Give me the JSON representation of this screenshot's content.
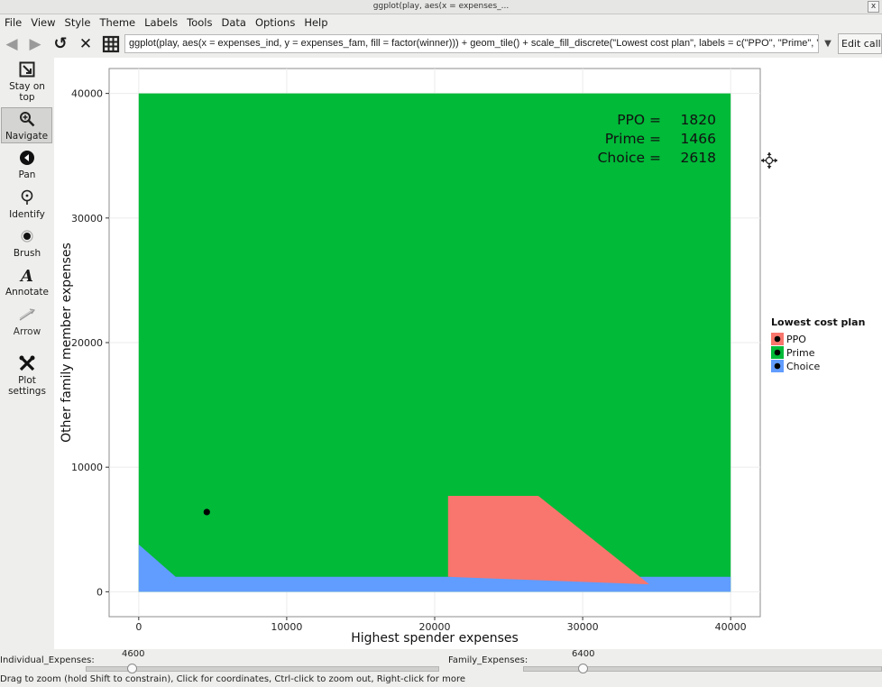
{
  "window": {
    "title": "ggplot(play, aes(x = expenses_...",
    "close": "x"
  },
  "menu": [
    "File",
    "View",
    "Style",
    "Theme",
    "Labels",
    "Tools",
    "Data",
    "Options",
    "Help"
  ],
  "toolbar": {
    "command": "ggplot(play, aes(x = expenses_ind, y = expenses_fam, fill = factor(winner))) + geom_tile() + scale_fill_discrete(\"Lowest cost plan\", labels = c(\"PPO\", \"Prime\", \"Choice\")) + geom_",
    "edit_call": "Edit call..."
  },
  "tools": [
    {
      "label": "Stay on top",
      "icon": "stay-on-top-icon"
    },
    {
      "label": "Navigate",
      "icon": "magnifier-icon",
      "active": true
    },
    {
      "label": "Pan",
      "icon": "pan-icon"
    },
    {
      "label": "Identify",
      "icon": "identify-icon"
    },
    {
      "label": "Brush",
      "icon": "brush-icon"
    },
    {
      "label": "Annotate",
      "icon": "annotate-icon"
    },
    {
      "label": "Arrow",
      "icon": "arrow-icon"
    },
    {
      "label": "Plot settings",
      "icon": "wrench-icon"
    }
  ],
  "chart_data": {
    "type": "heatmap",
    "xlabel": "Highest spender expenses",
    "ylabel": "Other family member expenses",
    "xlim": [
      -2000,
      42000
    ],
    "ylim": [
      -2000,
      42000
    ],
    "xticks": [
      0,
      10000,
      20000,
      30000,
      40000
    ],
    "yticks": [
      0,
      10000,
      20000,
      30000,
      40000
    ],
    "grid": true,
    "legend": {
      "title": "Lowest cost plan",
      "placement": "right",
      "entries": [
        {
          "name": "PPO",
          "color": "#f8766d"
        },
        {
          "name": "Prime",
          "color": "#00ba38"
        },
        {
          "name": "Choice",
          "color": "#619cff"
        }
      ]
    },
    "annotations": [
      {
        "label": "PPO =",
        "value": "1820"
      },
      {
        "label": "Prime =",
        "value": "1466"
      },
      {
        "label": "Choice =",
        "value": "2618"
      }
    ],
    "regions": [
      {
        "plan": "Prime",
        "polygon": [
          [
            0,
            0
          ],
          [
            40000,
            0
          ],
          [
            40000,
            40000
          ],
          [
            0,
            40000
          ]
        ]
      },
      {
        "plan": "Choice",
        "polygon": [
          [
            0,
            0
          ],
          [
            40000,
            0
          ],
          [
            40000,
            1200
          ],
          [
            2500,
            1200
          ],
          [
            0,
            3800
          ]
        ]
      },
      {
        "plan": "PPO",
        "polygon": [
          [
            20900,
            1200
          ],
          [
            34500,
            600
          ],
          [
            27000,
            7700
          ],
          [
            20900,
            7700
          ]
        ]
      }
    ],
    "point": {
      "x": 4600,
      "y": 6400
    }
  },
  "sliders": [
    {
      "label": "Individual_Expenses:",
      "value": "4600"
    },
    {
      "label": "Family_Expenses:",
      "value": "6400"
    }
  ],
  "status": "Drag to zoom (hold Shift to constrain), Click for coordinates, Ctrl-click to zoom out, Right-click for more"
}
